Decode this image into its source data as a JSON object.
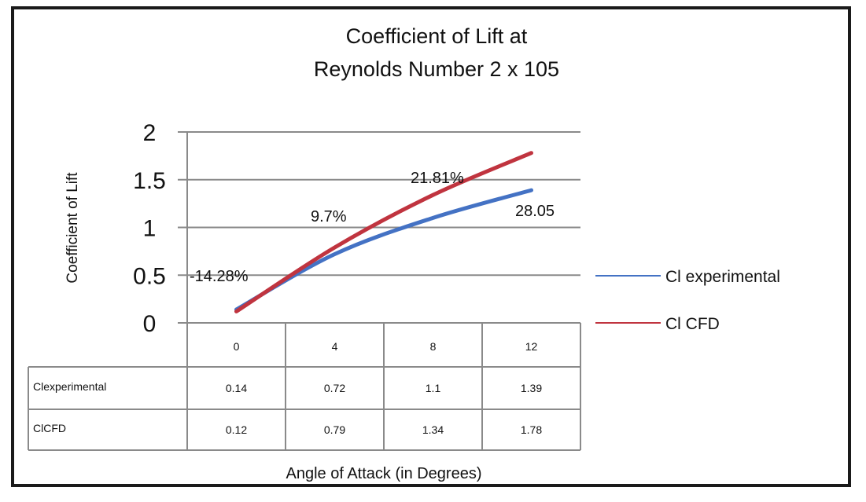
{
  "chart_data": {
    "type": "line",
    "title_lines": [
      "Coefficient of Lift at",
      "Reynolds Number 2 x 105"
    ],
    "xlabel": "Angle of Attack (in Degrees)",
    "ylabel": "Coefficient of Lift",
    "categories": [
      "0",
      "4",
      "8",
      "12"
    ],
    "ylim": [
      0,
      2
    ],
    "yticks": [
      "0",
      "0.5",
      "1",
      "1.5",
      "2"
    ],
    "grid": true,
    "legend_position": "right",
    "series": [
      {
        "name": "Cl experimental",
        "table_label": "Clexperimental",
        "values": [
          0.14,
          0.72,
          1.1,
          1.39
        ],
        "values_text": [
          "0.14",
          "0.72",
          "1.1",
          "1.39"
        ],
        "color": "#4472C4"
      },
      {
        "name": "Cl CFD",
        "table_label": "ClCFD",
        "values": [
          0.12,
          0.79,
          1.34,
          1.78
        ],
        "values_text": [
          "0.12",
          "0.79",
          "1.34",
          "1.78"
        ],
        "color": "#C0343F"
      }
    ],
    "annotations": [
      "-14.28%",
      "9.7%",
      "21.81%",
      "28.05"
    ]
  }
}
